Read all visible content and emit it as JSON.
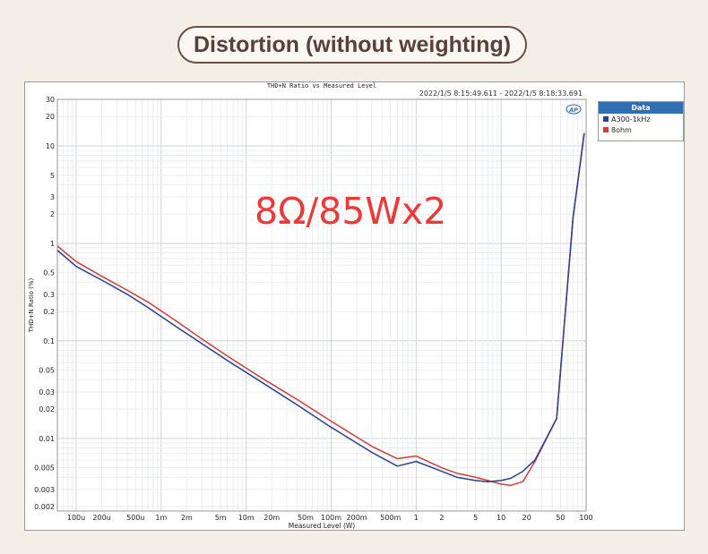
{
  "headline": "Distortion (without weighting)",
  "annotation": "8Ω/85Wx2",
  "chart_data": {
    "type": "line",
    "title": "THD+N Ratio vs Measured Level",
    "timestamp": "2022/1/5 8:15:49.611 -   2022/1/5 8:18:33.691",
    "xlabel": "Measured Level (W)",
    "ylabel": "THD+N Ratio (%)",
    "xscale": "log",
    "yscale": "log",
    "xlim": [
      6e-05,
      100
    ],
    "ylim": [
      0.0018,
      30
    ],
    "grid": true,
    "legend_title": "Data",
    "legend_position": "right",
    "x_ticks": [
      {
        "value": 0.0001,
        "label": "100u"
      },
      {
        "value": 0.0002,
        "label": "200u"
      },
      {
        "value": 0.0005,
        "label": "500u"
      },
      {
        "value": 0.001,
        "label": "1m"
      },
      {
        "value": 0.002,
        "label": "2m"
      },
      {
        "value": 0.005,
        "label": "5m"
      },
      {
        "value": 0.01,
        "label": "10m"
      },
      {
        "value": 0.02,
        "label": "20m"
      },
      {
        "value": 0.05,
        "label": "50m"
      },
      {
        "value": 0.1,
        "label": "100m"
      },
      {
        "value": 0.2,
        "label": "200m"
      },
      {
        "value": 0.5,
        "label": "500m"
      },
      {
        "value": 1,
        "label": "1"
      },
      {
        "value": 2,
        "label": "2"
      },
      {
        "value": 5,
        "label": "5"
      },
      {
        "value": 10,
        "label": "10"
      },
      {
        "value": 20,
        "label": "20"
      },
      {
        "value": 50,
        "label": "50"
      },
      {
        "value": 100,
        "label": "100"
      }
    ],
    "y_ticks": [
      {
        "value": 30,
        "label": "30"
      },
      {
        "value": 20,
        "label": "20"
      },
      {
        "value": 10,
        "label": "10"
      },
      {
        "value": 5,
        "label": "5"
      },
      {
        "value": 3,
        "label": "3"
      },
      {
        "value": 2,
        "label": "2"
      },
      {
        "value": 1,
        "label": "1"
      },
      {
        "value": 0.5,
        "label": "0.5"
      },
      {
        "value": 0.3,
        "label": "0.3"
      },
      {
        "value": 0.2,
        "label": "0.2"
      },
      {
        "value": 0.1,
        "label": "0.1"
      },
      {
        "value": 0.05,
        "label": "0.05"
      },
      {
        "value": 0.03,
        "label": "0.03"
      },
      {
        "value": 0.02,
        "label": "0.02"
      },
      {
        "value": 0.01,
        "label": "0.01"
      },
      {
        "value": 0.005,
        "label": "0.005"
      },
      {
        "value": 0.003,
        "label": "0.003"
      },
      {
        "value": 0.002,
        "label": "0.002"
      }
    ],
    "series": [
      {
        "name": "A300-1kHz",
        "color": "#2b3f93",
        "x": [
          6e-05,
          0.0001,
          0.0002,
          0.0004,
          0.0007,
          0.0015,
          0.003,
          0.006,
          0.015,
          0.04,
          0.1,
          0.3,
          0.6,
          1,
          2,
          3,
          5,
          7,
          10,
          13,
          18,
          25,
          45,
          70,
          95
        ],
        "y": [
          0.85,
          0.58,
          0.42,
          0.3,
          0.22,
          0.14,
          0.094,
          0.063,
          0.038,
          0.022,
          0.013,
          0.0072,
          0.0052,
          0.0058,
          0.0046,
          0.004,
          0.0037,
          0.0036,
          0.0037,
          0.0039,
          0.0046,
          0.006,
          0.016,
          1.8,
          13.5
        ]
      },
      {
        "name": "8ohm",
        "color": "#d83a3a",
        "x": [
          6e-05,
          0.0001,
          0.0002,
          0.0004,
          0.0007,
          0.0015,
          0.003,
          0.006,
          0.015,
          0.04,
          0.1,
          0.3,
          0.6,
          1,
          2,
          3,
          5,
          7,
          10,
          13,
          18,
          25,
          45,
          70,
          95
        ],
        "y": [
          0.94,
          0.65,
          0.46,
          0.33,
          0.25,
          0.16,
          0.105,
          0.07,
          0.042,
          0.025,
          0.015,
          0.0083,
          0.0062,
          0.0066,
          0.005,
          0.0044,
          0.004,
          0.0037,
          0.0034,
          0.0033,
          0.0036,
          0.0058,
          0.016,
          1.8,
          13.5
        ]
      }
    ]
  }
}
